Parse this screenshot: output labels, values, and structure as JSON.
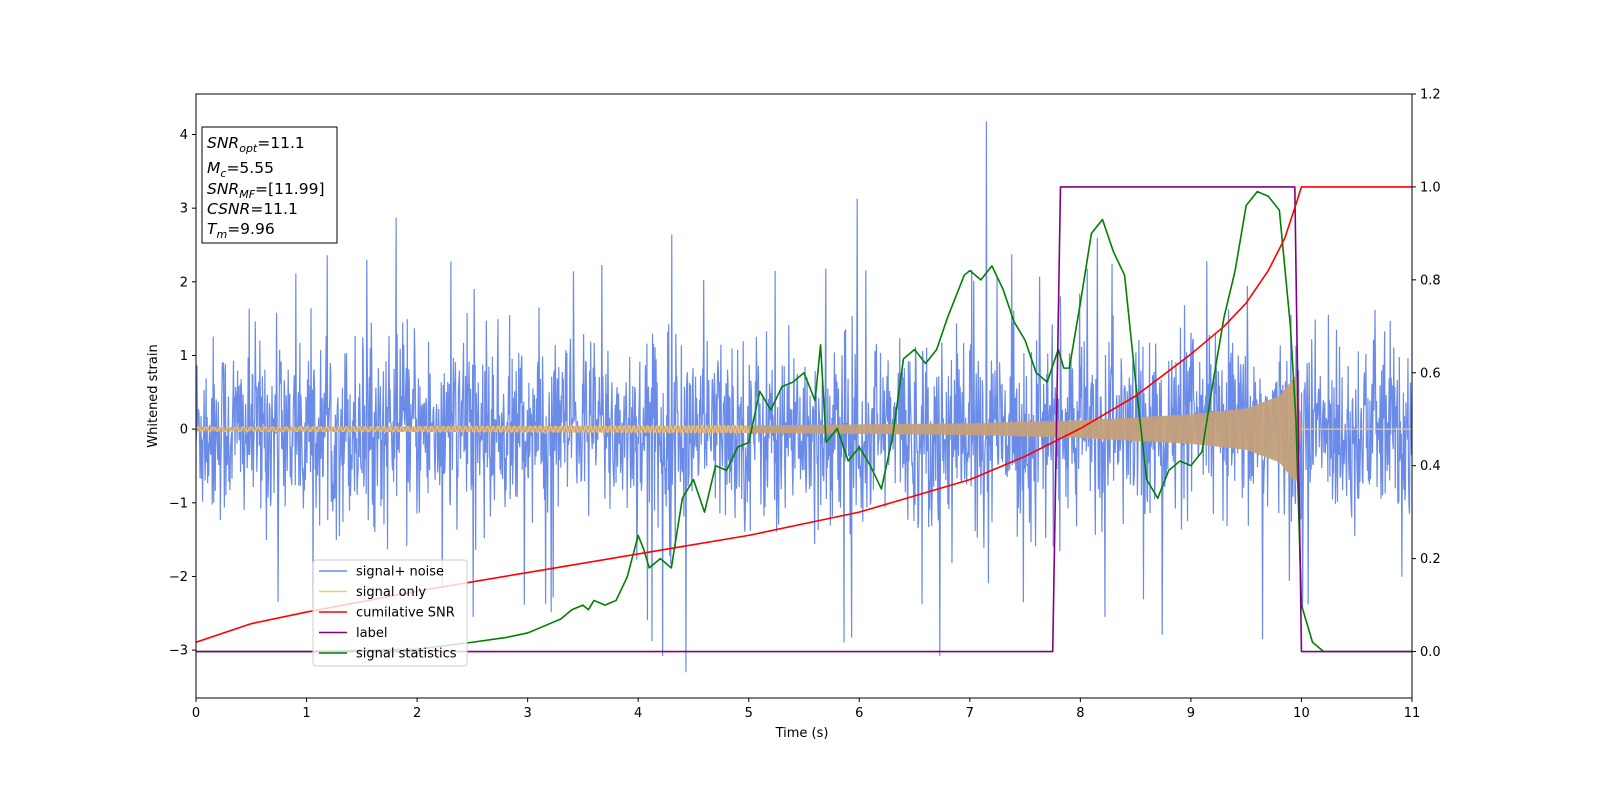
{
  "chart_data": {
    "type": "line",
    "title": "",
    "xlabel": "Time (s)",
    "ylabel": "Whitened strain",
    "xlim": [
      0,
      11
    ],
    "ylim": [
      -3.65,
      4.55
    ],
    "y2lim": [
      -0.1,
      1.2
    ],
    "x_ticks": [
      0,
      1,
      2,
      3,
      4,
      5,
      6,
      7,
      8,
      9,
      10,
      11
    ],
    "y_ticks": [
      -3,
      -2,
      -1,
      0,
      1,
      2,
      3,
      4
    ],
    "y2_ticks": [
      "0.0",
      "0.2",
      "0.4",
      "0.6",
      "0.8",
      "1.0",
      "1.2"
    ],
    "grid": false,
    "legend_position": "lower-left",
    "colors": {
      "signal_noise": "#6b8be8",
      "signal_only": "#f2c879",
      "cumulative_snr": "#ff0000",
      "label": "#800080",
      "signal_statistics": "#008000"
    },
    "info_box": [
      {
        "base": "SNR",
        "sub": "opt",
        "value": "=11.1"
      },
      {
        "base": "M",
        "sub": "c",
        "value": "=5.55"
      },
      {
        "base": "SNR",
        "sub": "MF",
        "value": "=[11.99]"
      },
      {
        "base": "CSNR",
        "sub": "",
        "value": "=11.1"
      },
      {
        "base": "T",
        "sub": "m",
        "value": "=9.96"
      }
    ],
    "series": [
      {
        "name": "signal+ noise",
        "axis": "left",
        "description_points": "noise band approx ±1.5 with spikes to ±2.5; max 4.18 at t=7.15; min -3.30 at t=4.43"
      },
      {
        "name": "signal only",
        "axis": "left",
        "envelope": {
          "t": [
            0,
            5,
            7,
            8,
            9,
            9.5,
            9.8,
            9.96,
            10
          ],
          "amp": [
            0.03,
            0.05,
            0.08,
            0.12,
            0.2,
            0.28,
            0.45,
            0.75,
            0
          ]
        }
      },
      {
        "name": "cumilative SNR",
        "axis": "right",
        "x": [
          0,
          0.5,
          1,
          2,
          3,
          4,
          5,
          6,
          7,
          7.5,
          8,
          8.5,
          9,
          9.3,
          9.5,
          9.7,
          9.85,
          9.96,
          10,
          11
        ],
        "y": [
          0.02,
          0.06,
          0.085,
          0.13,
          0.17,
          0.21,
          0.25,
          0.3,
          0.37,
          0.42,
          0.48,
          0.55,
          0.64,
          0.7,
          0.75,
          0.82,
          0.89,
          0.97,
          1.0,
          1.0
        ]
      },
      {
        "name": "label",
        "axis": "right",
        "x": [
          0,
          7.75,
          7.82,
          9.94,
          10.0,
          11
        ],
        "y": [
          0,
          0,
          1,
          1,
          0,
          0
        ]
      },
      {
        "name": "signal statistics",
        "axis": "right",
        "x": [
          0,
          1,
          2,
          2.5,
          2.8,
          3.0,
          3.1,
          3.3,
          3.4,
          3.5,
          3.55,
          3.6,
          3.7,
          3.8,
          3.9,
          4.0,
          4.05,
          4.1,
          4.2,
          4.3,
          4.4,
          4.5,
          4.6,
          4.7,
          4.8,
          4.9,
          5.0,
          5.1,
          5.2,
          5.3,
          5.4,
          5.5,
          5.6,
          5.65,
          5.7,
          5.8,
          5.9,
          6.0,
          6.1,
          6.2,
          6.3,
          6.4,
          6.5,
          6.6,
          6.7,
          6.8,
          6.9,
          6.95,
          7.0,
          7.1,
          7.2,
          7.3,
          7.4,
          7.5,
          7.6,
          7.7,
          7.8,
          7.85,
          7.9,
          8.0,
          8.1,
          8.2,
          8.3,
          8.4,
          8.5,
          8.6,
          8.7,
          8.8,
          8.9,
          9.0,
          9.1,
          9.2,
          9.3,
          9.4,
          9.5,
          9.6,
          9.7,
          9.8,
          9.9,
          9.95,
          10.0,
          10.1,
          10.2,
          10.5,
          11
        ],
        "y": [
          0.0,
          0.0,
          0.005,
          0.02,
          0.03,
          0.04,
          0.05,
          0.07,
          0.09,
          0.1,
          0.09,
          0.11,
          0.1,
          0.11,
          0.16,
          0.25,
          0.22,
          0.18,
          0.2,
          0.18,
          0.33,
          0.37,
          0.3,
          0.4,
          0.39,
          0.44,
          0.45,
          0.56,
          0.52,
          0.57,
          0.58,
          0.6,
          0.54,
          0.66,
          0.45,
          0.48,
          0.41,
          0.44,
          0.4,
          0.35,
          0.46,
          0.63,
          0.65,
          0.62,
          0.65,
          0.72,
          0.78,
          0.81,
          0.82,
          0.8,
          0.83,
          0.78,
          0.71,
          0.67,
          0.6,
          0.58,
          0.65,
          0.61,
          0.61,
          0.75,
          0.9,
          0.93,
          0.86,
          0.81,
          0.58,
          0.37,
          0.33,
          0.39,
          0.41,
          0.4,
          0.43,
          0.58,
          0.72,
          0.82,
          0.96,
          0.99,
          0.98,
          0.95,
          0.7,
          0.5,
          0.1,
          0.02,
          0.0,
          0.0,
          0.0
        ]
      }
    ]
  }
}
